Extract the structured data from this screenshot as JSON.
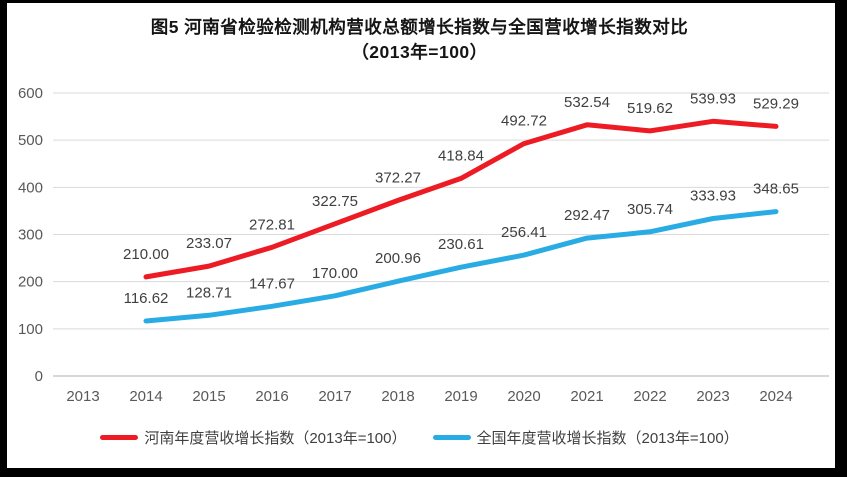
{
  "title": {
    "line1": "图5  河南省检验检测机构营收总额增长指数与全国营收增长指数对比",
    "line2": "（2013年=100）"
  },
  "chart_data": {
    "type": "line",
    "categories": [
      "2013",
      "2014",
      "2015",
      "2016",
      "2017",
      "2018",
      "2019",
      "2020",
      "2021",
      "2022",
      "2023",
      "2024"
    ],
    "series": [
      {
        "name": "河南年度营收增长指数（2013年=100）",
        "color": "#ed1c24",
        "values": [
          null,
          210.0,
          233.07,
          272.81,
          322.75,
          372.27,
          418.84,
          492.72,
          532.54,
          519.62,
          539.93,
          529.29
        ]
      },
      {
        "name": "全国年度营收增长指数（2013年=100）",
        "color": "#29ace3",
        "values": [
          null,
          116.62,
          128.71,
          147.67,
          170.0,
          200.96,
          230.61,
          256.41,
          292.47,
          305.74,
          333.93,
          348.65
        ]
      }
    ],
    "yticks": [
      0,
      100,
      200,
      300,
      400,
      500,
      600
    ],
    "ylim": [
      0,
      600
    ],
    "grid": true,
    "data_label_decimals": 2,
    "legend_position": "bottom"
  },
  "style": {
    "grid_color": "#d9d9d9",
    "axis_color": "#bfbfbf",
    "tick_label_color": "#595959",
    "data_label_color": "#404040",
    "frame_color": "#000000",
    "line_width": 5
  }
}
